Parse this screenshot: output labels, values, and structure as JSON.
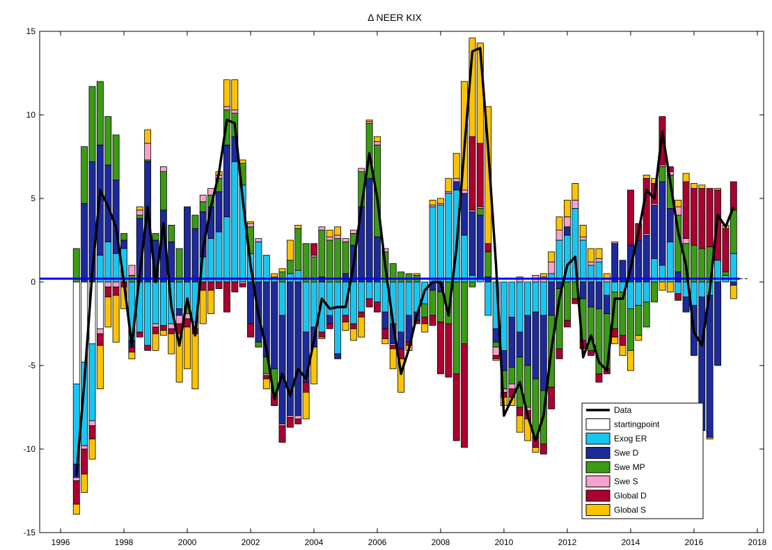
{
  "chart_data": {
    "type": "bar",
    "stacked": true,
    "title": "Δ NEER KIX",
    "x": [
      1996.5,
      1996.75,
      1997,
      1997.25,
      1997.5,
      1997.75,
      1998,
      1998.25,
      1998.5,
      1998.75,
      1999,
      1999.25,
      1999.5,
      1999.75,
      2000,
      2000.25,
      2000.5,
      2000.75,
      2001,
      2001.25,
      2001.5,
      2001.75,
      2002,
      2002.25,
      2002.5,
      2002.75,
      2003,
      2003.25,
      2003.5,
      2003.75,
      2004,
      2004.25,
      2004.5,
      2004.75,
      2005,
      2005.25,
      2005.5,
      2005.75,
      2006,
      2006.25,
      2006.5,
      2006.75,
      2007,
      2007.25,
      2007.5,
      2007.75,
      2008,
      2008.25,
      2008.5,
      2008.75,
      2009,
      2009.25,
      2009.5,
      2009.75,
      2010,
      2010.25,
      2010.5,
      2010.75,
      2011,
      2011.25,
      2011.5,
      2011.75,
      2012,
      2012.25,
      2012.5,
      2012.75,
      2013,
      2013.25,
      2013.5,
      2013.75,
      2014,
      2014.25,
      2014.5,
      2014.75,
      2015,
      2015.25,
      2015.5,
      2015.75,
      2016,
      2016.25,
      2016.5,
      2016.75,
      2017,
      2017.25
    ],
    "series": [
      {
        "name": "Data",
        "type": "line",
        "color": "#000000",
        "values": [
          -11.6,
          -6,
          0.5,
          5.5,
          4.5,
          3.3,
          0,
          -3.8,
          0.5,
          4.5,
          0,
          3.5,
          -1.5,
          -3.8,
          -1,
          -3.2,
          2,
          4.5,
          6.5,
          9.7,
          9.5,
          5,
          1,
          -2,
          -4,
          -7,
          -5.5,
          -6.8,
          -5.2,
          -5.8,
          -3.5,
          -1,
          -1.6,
          -1.5,
          -1.5,
          1,
          4.5,
          7.7,
          5,
          1,
          -2.5,
          -5.5,
          -4,
          -2,
          -0.5,
          0,
          0,
          -2,
          2,
          8,
          13.8,
          14,
          8,
          1,
          -8,
          -7,
          -6,
          -8,
          -9.5,
          -8,
          -4,
          -1,
          1,
          1.5,
          -4.5,
          -3.2,
          -4.8,
          -5.3,
          -1,
          -1,
          0.8,
          3,
          5.5,
          5,
          9,
          6,
          3,
          1,
          -3,
          -3.8,
          -0.5,
          4,
          3.3,
          4.5
        ]
      },
      {
        "name": "startingpoint",
        "type": "bar",
        "color": "#ffffff",
        "values": [
          -6.1,
          -4.8,
          -3.7,
          -2.8,
          0,
          0,
          0,
          0,
          0,
          0,
          0,
          0,
          0,
          0,
          0,
          0,
          0,
          0,
          0,
          0,
          0,
          0,
          0,
          0,
          0,
          0,
          0,
          0,
          0,
          0,
          0,
          0,
          0,
          0,
          0,
          0,
          0,
          0,
          0,
          0,
          0,
          0,
          0,
          0,
          0,
          0,
          0,
          0,
          0,
          0,
          0,
          0,
          0,
          0,
          0,
          0,
          0,
          0,
          0,
          0,
          0,
          0,
          0,
          0,
          0,
          0,
          0,
          0,
          0,
          0,
          0,
          0,
          0,
          0,
          0,
          0,
          0,
          0,
          0,
          0,
          0,
          0,
          0,
          0
        ]
      },
      {
        "name": "Exog ER",
        "type": "bar",
        "color": "#19c6f2",
        "values": [
          -4.8,
          -5,
          -4.6,
          1.6,
          2.4,
          1.7,
          2,
          -3.5,
          -3,
          -3.8,
          -2.5,
          -2.6,
          -2.5,
          -1.6,
          -1.5,
          -2.4,
          1.5,
          2.6,
          3,
          3.9,
          7.2,
          5.8,
          1.7,
          2.4,
          1.6,
          0.3,
          -2,
          0.5,
          0.7,
          -3,
          -2.7,
          -3,
          -2,
          -4.3,
          -2,
          -2.5,
          -1.8,
          -1,
          -1.2,
          -1.8,
          -2.5,
          -3,
          -2,
          -1.8,
          -1.3,
          4.5,
          4.6,
          5.3,
          5.5,
          2.8,
          0.4,
          0.2,
          -2,
          -2.8,
          -4.1,
          -2.1,
          -3,
          -2,
          -1.8,
          -2,
          0.5,
          2.5,
          2.8,
          4.4,
          2.5,
          1,
          1.2,
          -0.8,
          -0.6,
          -0.6,
          -1.6,
          -1.4,
          -1.2,
          1.4,
          1,
          2.4,
          -0.7,
          -0.9,
          -1.4,
          -0.9,
          -0.8,
          1.3,
          0.4,
          1.7
        ]
      },
      {
        "name": "Swe D",
        "type": "bar",
        "color": "#1c2a9c",
        "values": [
          -0.8,
          4.7,
          7.2,
          6.6,
          4.6,
          4.4,
          0.5,
          -0.4,
          3.8,
          7.2,
          2.5,
          4.3,
          2.4,
          -0.4,
          4.5,
          3.2,
          2.7,
          1.9,
          2.4,
          4.3,
          1.5,
          0,
          -2.5,
          -3.6,
          -4.5,
          -5.2,
          -6.5,
          -8,
          -8,
          -3,
          -1.2,
          0.3,
          -0.5,
          -0.3,
          0.5,
          2.2,
          4.5,
          6.2,
          2.7,
          -1,
          -1.2,
          -1,
          -1.6,
          -0.5,
          0,
          -0.5,
          -0.6,
          0,
          0.5,
          2.5,
          3.8,
          3.8,
          0.3,
          -0.8,
          -1.2,
          -3,
          -1.5,
          -3,
          -4,
          -4.5,
          -2,
          -0.4,
          0.5,
          0,
          -1,
          -1.5,
          -1.6,
          -1.1,
          2.3,
          1.3,
          2.2,
          2.5,
          2.8,
          3.2,
          5,
          2,
          0.6,
          -0.9,
          -3,
          -8,
          -8.5,
          -5,
          0,
          -0.2
        ]
      },
      {
        "name": "Swe MP",
        "type": "bar",
        "color": "#3c9a17",
        "values": [
          2,
          3.4,
          4.5,
          3.8,
          2.9,
          2.7,
          0.4,
          0.4,
          0.2,
          0.1,
          0.4,
          2.3,
          1,
          2,
          -0.4,
          0.8,
          0.6,
          0.7,
          0.8,
          2.1,
          1.4,
          1.3,
          1.6,
          -0.3,
          -1,
          -1.5,
          0.6,
          0.8,
          2.5,
          2.3,
          1.5,
          2.8,
          2.5,
          2.6,
          1.9,
          0.7,
          2.1,
          3.3,
          5.5,
          1.8,
          1.1,
          0.6,
          0.5,
          0.4,
          -0.8,
          -1.5,
          -1.8,
          -2.5,
          -5.5,
          -3.7,
          -0.3,
          0.4,
          1.5,
          -0.3,
          -1.1,
          -1,
          -3,
          -2.5,
          -3.5,
          -3.2,
          -4.3,
          -3.6,
          -2.3,
          -1,
          -2.5,
          -2.6,
          -3.9,
          -3.3,
          -2.2,
          -2.6,
          -2.5,
          -1.8,
          -1.5,
          -1.2,
          0.9,
          2,
          3.4,
          2.3,
          2.2,
          2,
          2.1,
          0,
          0.2,
          2.6
        ]
      },
      {
        "name": "Swe S",
        "type": "bar",
        "color": "#f7a1cd",
        "values": [
          -0.2,
          -0.2,
          -0.3,
          -0.3,
          -0.3,
          -0.3,
          0,
          0.6,
          0.3,
          1,
          -0.2,
          0.3,
          -0.3,
          -0.5,
          -0.3,
          -0.4,
          0.4,
          0.4,
          0.2,
          0.2,
          0.2,
          -0.1,
          0.2,
          0.2,
          -0.1,
          -0.1,
          -0.1,
          -0.1,
          -0.2,
          0,
          0.1,
          0.2,
          0.2,
          0.2,
          0.2,
          0.2,
          0.2,
          0.1,
          0.2,
          0.2,
          -0.1,
          0,
          0,
          0,
          0,
          0.1,
          0.1,
          0.1,
          0.2,
          0.2,
          0.1,
          0.1,
          0,
          -0.5,
          -0.2,
          -0.3,
          0.3,
          -0.2,
          0.4,
          0.3,
          0.7,
          0.6,
          0.6,
          0.5,
          0.2,
          0.2,
          0.2,
          0.2,
          0.1,
          0,
          0,
          0,
          0.1,
          0.1,
          0.1,
          0.2,
          0.5,
          0.3,
          0,
          0,
          0,
          0,
          0,
          0
        ]
      },
      {
        "name": "Global D",
        "type": "bar",
        "color": "#ab0030",
        "values": [
          -1.4,
          -1.5,
          -0.8,
          -0.7,
          -0.6,
          -0.5,
          -0.3,
          -0.3,
          -0.3,
          -0.3,
          -0.4,
          -0.3,
          -0.3,
          -0.6,
          -0.5,
          -0.3,
          -0.5,
          -0.5,
          -0.4,
          -1.8,
          -0.6,
          -0.2,
          -0.8,
          0,
          -0.2,
          -0.6,
          -1,
          -0.6,
          -0.3,
          -0.6,
          0.7,
          -0.3,
          -0.3,
          0,
          -0.4,
          -0.3,
          -0.3,
          -0.5,
          -0.6,
          -0.6,
          -0.2,
          -0.6,
          -0.2,
          -0.2,
          -0.4,
          -0.6,
          -3.1,
          -3.2,
          -4,
          -6.2,
          4.4,
          3.8,
          0.5,
          -0.2,
          -0.3,
          -0.5,
          -0.5,
          -0.5,
          -0.6,
          -0.6,
          -1.3,
          -0.6,
          -0.4,
          -0.3,
          -0.5,
          -0.3,
          -0.5,
          -0.3,
          -0.5,
          -0.6,
          3.3,
          1,
          3.3,
          1.2,
          2.9,
          0.3,
          -0.4,
          3.4,
          3.4,
          3.6,
          3.5,
          4.2,
          2.6,
          1.7
        ]
      },
      {
        "name": "Global S",
        "type": "bar",
        "color": "#fdc300",
        "values": [
          -0.6,
          -1.1,
          -1.2,
          -2.6,
          -1.8,
          -2.8,
          -1.3,
          -0.4,
          0.2,
          0.8,
          -1,
          -0.3,
          -1.2,
          -2.9,
          -2.5,
          -3.3,
          -2,
          -1.4,
          0.2,
          1.6,
          1.8,
          0.2,
          0.1,
          0,
          -0.6,
          0.2,
          0.2,
          1.2,
          0.2,
          -1.6,
          -2.2,
          -0.1,
          0.4,
          0.5,
          -0.5,
          -0.7,
          -1.2,
          0.1,
          0.3,
          -0.3,
          -1.2,
          -2,
          -0.3,
          0.1,
          -0.5,
          0.3,
          0.3,
          0.8,
          1.5,
          6.5,
          5.9,
          6,
          8.2,
          -0.1,
          -0.5,
          -0.5,
          -1,
          -1.3,
          -0.3,
          0.2,
          0.6,
          0.8,
          1,
          1,
          0.7,
          0.8,
          0.6,
          0.3,
          -0.4,
          -0.6,
          -1.2,
          -0.3,
          0.2,
          0.3,
          -0.5,
          -0.6,
          0.4,
          0.5,
          0.3,
          0.2,
          -0.1,
          0.1,
          0.2,
          -0.8
        ]
      }
    ],
    "reference_line": {
      "value": 0.2,
      "color": "#0000ff"
    },
    "xlim": [
      1995.34,
      2018.2
    ],
    "xticks": [
      1996,
      1998,
      2000,
      2002,
      2004,
      2006,
      2008,
      2010,
      2012,
      2014,
      2016,
      2018
    ],
    "ylim": [
      -15,
      15
    ],
    "yticks": [
      -15,
      -10,
      -5,
      0,
      5,
      10,
      15
    ],
    "grid": false,
    "legend_loc": "lower right"
  }
}
